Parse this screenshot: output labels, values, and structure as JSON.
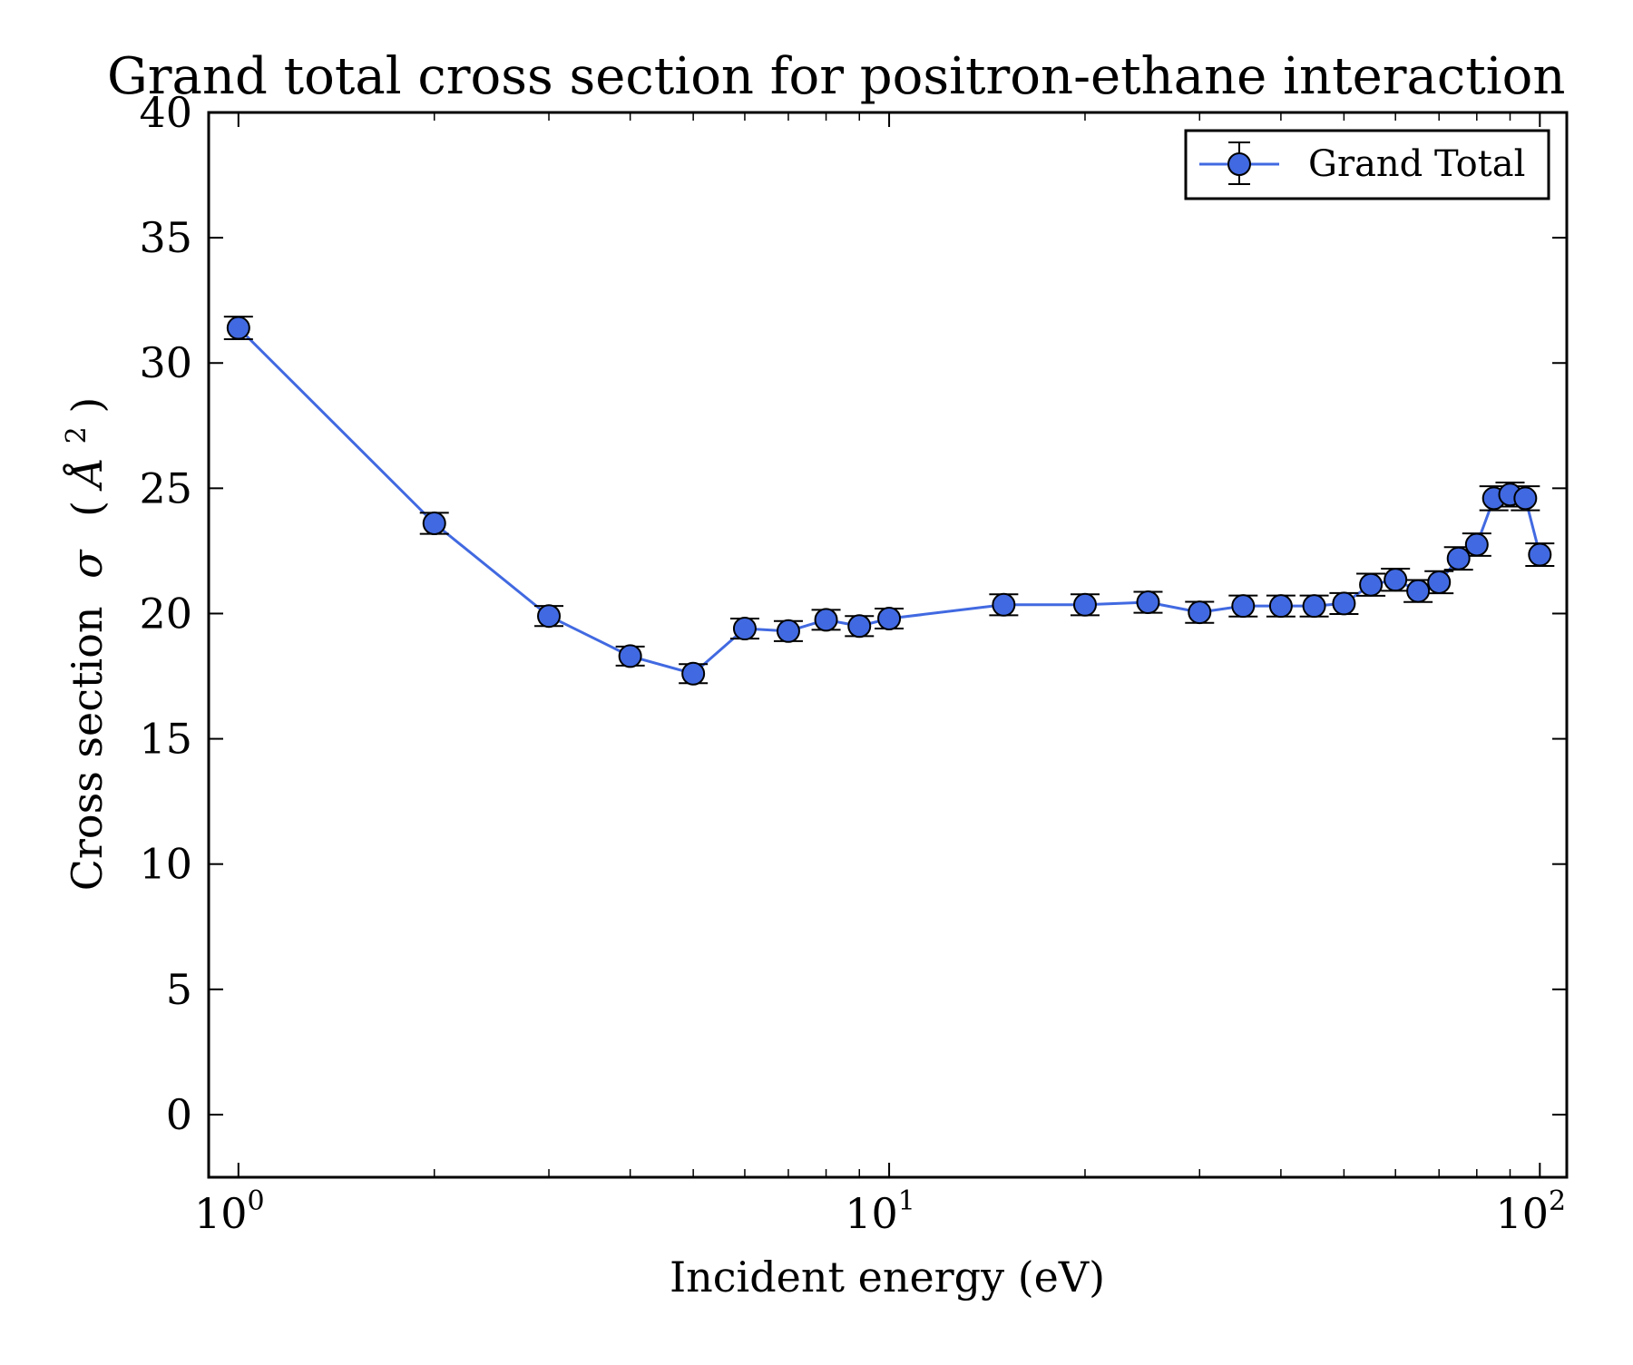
{
  "chart_data": {
    "type": "line",
    "title": "Grand total cross section for positron-ethane interaction",
    "xlabel": "Incident energy (eV)",
    "ylabel_prefix": "Cross section",
    "ylabel_symbol": "σ",
    "ylabel_unit_open": "(",
    "ylabel_unit_letter": "Å",
    "ylabel_unit_power": "2",
    "ylabel_unit_close": ")",
    "xscale": "log",
    "xlim": [
      0.9,
      110
    ],
    "ylim": [
      -2.5,
      40
    ],
    "x_ticks": [
      {
        "value": 1,
        "base": "10",
        "exp": "0"
      },
      {
        "value": 10,
        "base": "10",
        "exp": "1"
      },
      {
        "value": 100,
        "base": "10",
        "exp": "2"
      }
    ],
    "y_ticks": [
      0,
      5,
      10,
      15,
      20,
      25,
      30,
      35,
      40
    ],
    "y_tick_labels": [
      "0",
      "5",
      "10",
      "15",
      "20",
      "25",
      "30",
      "35",
      "40"
    ],
    "grid": false,
    "legend_position": "top-right",
    "series": [
      {
        "name": "Grand Total",
        "color": "#4169e1",
        "marker": "circle",
        "x": [
          1,
          2,
          3,
          4,
          5,
          6,
          7,
          8,
          9,
          10,
          15,
          20,
          25,
          30,
          35,
          40,
          45,
          50,
          55,
          60,
          65,
          70,
          75,
          80,
          85,
          90,
          95,
          100
        ],
        "y": [
          31.4,
          23.6,
          19.9,
          18.3,
          17.6,
          19.4,
          19.3,
          19.75,
          19.5,
          19.8,
          20.35,
          20.35,
          20.45,
          20.05,
          20.3,
          20.3,
          20.3,
          20.4,
          21.15,
          21.35,
          20.9,
          21.25,
          22.2,
          22.75,
          24.6,
          24.75,
          24.6,
          22.35
        ],
        "yerr": [
          0.45,
          0.42,
          0.4,
          0.38,
          0.38,
          0.4,
          0.4,
          0.4,
          0.4,
          0.4,
          0.42,
          0.42,
          0.42,
          0.42,
          0.42,
          0.42,
          0.42,
          0.42,
          0.44,
          0.44,
          0.44,
          0.44,
          0.45,
          0.45,
          0.48,
          0.48,
          0.48,
          0.45
        ]
      }
    ]
  }
}
